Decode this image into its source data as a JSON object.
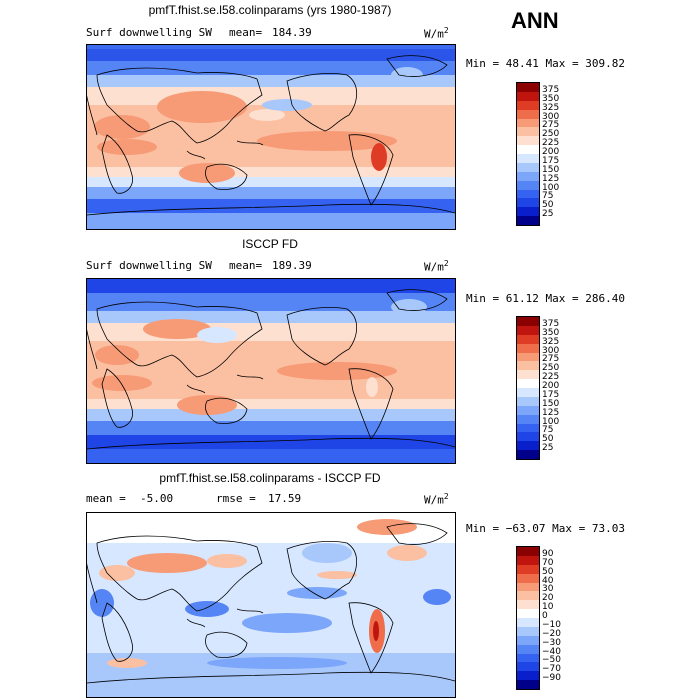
{
  "season": "ANN",
  "panels": [
    {
      "title": "pmfT.fhist.se.l58.colinparams (yrs 1980-1987)",
      "variable": "Surf downwelling SW",
      "stat_left": "mean=",
      "stat_left_value": "184.39",
      "stat_right": "",
      "stat_right_value": "",
      "units": "W/m",
      "units_exp": "2",
      "minmax": "Min =  48.41 Max = 309.82"
    },
    {
      "title": "ISCCP FD",
      "variable": "Surf downwelling SW",
      "stat_left": "mean=",
      "stat_left_value": "189.39",
      "stat_right": "",
      "stat_right_value": "",
      "units": "W/m",
      "units_exp": "2",
      "minmax": "Min =  61.12 Max = 286.40"
    },
    {
      "title": "pmfT.fhist.se.l58.colinparams - ISCCP FD",
      "variable": "",
      "stat_left": "mean =",
      "stat_left_value": "-5.00",
      "stat_right": "rmse =",
      "stat_right_value": "17.59",
      "units": "W/m",
      "units_exp": "2",
      "minmax": "Min = −63.07 Max =  73.03"
    }
  ],
  "chart_data": [
    {
      "type": "heatmap",
      "title": "pmfT.fhist.se.l58.colinparams (yrs 1980-1987)",
      "subtitle": "Surf downwelling SW",
      "units": "W/m2",
      "mean": 184.39,
      "min": 48.41,
      "max": 309.82,
      "colorbar_levels": [
        25,
        50,
        75,
        100,
        125,
        150,
        175,
        200,
        225,
        250,
        275,
        300,
        325,
        350,
        375
      ],
      "colorbar_labels": [
        "375",
        "350",
        "325",
        "300",
        "275",
        "250",
        "225",
        "200",
        "175",
        "150",
        "125",
        "100",
        "75",
        "50",
        "25"
      ],
      "colormap": [
        "#00008b",
        "#0a1fcc",
        "#1f45e6",
        "#3562f0",
        "#5585f5",
        "#7ba6fa",
        "#a8c8fc",
        "#d6e7ff",
        "#ffffff",
        "#fde0d0",
        "#fbbfa1",
        "#f79a76",
        "#ef6d4a",
        "#df3c26",
        "#c0150f",
        "#8b0000"
      ]
    },
    {
      "type": "heatmap",
      "title": "ISCCP FD",
      "subtitle": "Surf downwelling SW",
      "units": "W/m2",
      "mean": 189.39,
      "min": 61.12,
      "max": 286.4,
      "colorbar_levels": [
        25,
        50,
        75,
        100,
        125,
        150,
        175,
        200,
        225,
        250,
        275,
        300,
        325,
        350,
        375
      ],
      "colorbar_labels": [
        "375",
        "350",
        "325",
        "300",
        "275",
        "250",
        "225",
        "200",
        "175",
        "150",
        "125",
        "100",
        "75",
        "50",
        "25"
      ],
      "colormap": [
        "#00008b",
        "#0a1fcc",
        "#1f45e6",
        "#3562f0",
        "#5585f5",
        "#7ba6fa",
        "#a8c8fc",
        "#d6e7ff",
        "#ffffff",
        "#fde0d0",
        "#fbbfa1",
        "#f79a76",
        "#ef6d4a",
        "#df3c26",
        "#c0150f",
        "#8b0000"
      ]
    },
    {
      "type": "heatmap",
      "title": "pmfT.fhist.se.l58.colinparams - ISCCP FD",
      "units": "W/m2",
      "mean": -5.0,
      "rmse": 17.59,
      "min": -63.07,
      "max": 73.03,
      "colorbar_levels": [
        -90,
        -70,
        -50,
        -40,
        -30,
        -20,
        -10,
        0,
        10,
        20,
        30,
        40,
        50,
        70,
        90
      ],
      "colorbar_labels": [
        "90",
        "70",
        "50",
        "40",
        "30",
        "20",
        "10",
        "0",
        "−10",
        "−20",
        "−30",
        "−40",
        "−50",
        "−70",
        "−90"
      ],
      "colormap": [
        "#00008b",
        "#0a1fcc",
        "#1f45e6",
        "#3562f0",
        "#5585f5",
        "#7ba6fa",
        "#a8c8fc",
        "#d6e7ff",
        "#ffffff",
        "#fde0d0",
        "#fbbfa1",
        "#f79a76",
        "#ef6d4a",
        "#df3c26",
        "#c0150f",
        "#8b0000"
      ]
    }
  ]
}
